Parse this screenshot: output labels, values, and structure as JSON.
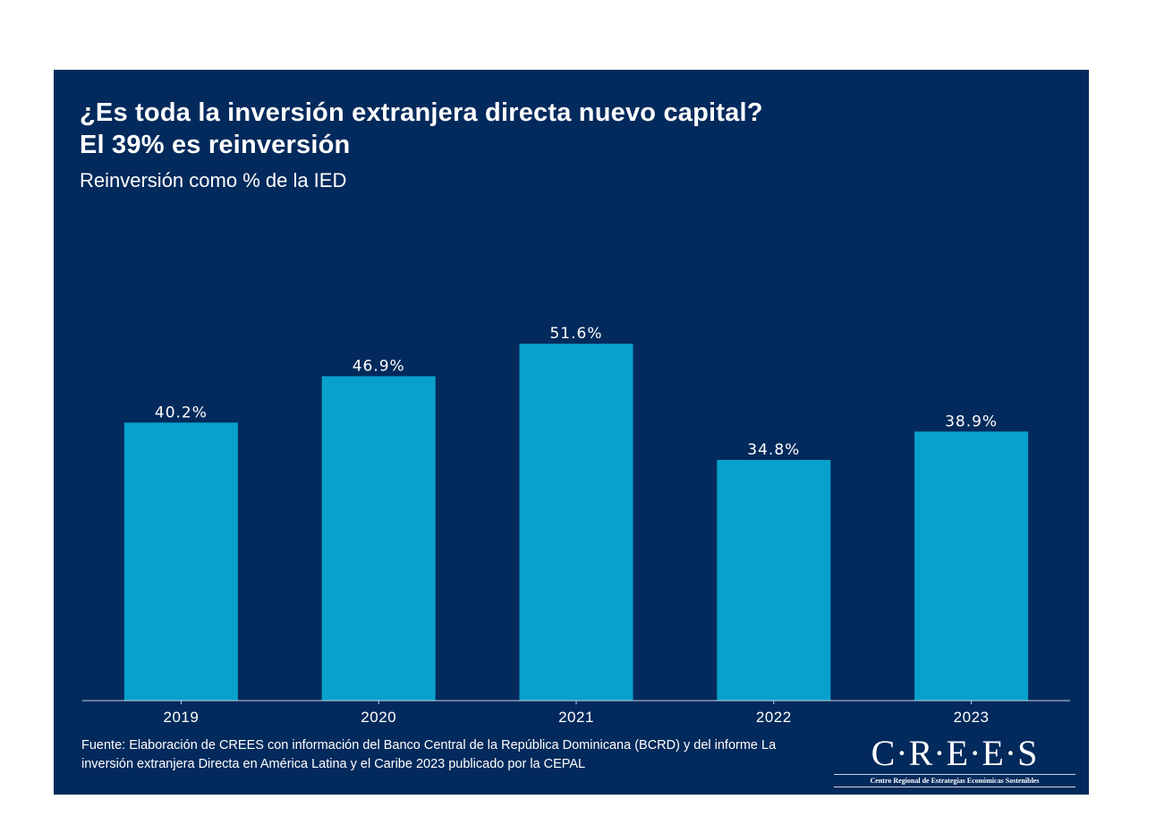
{
  "header": {
    "title_line1": "¿Es toda la inversión extranjera directa nuevo capital?",
    "title_line2": "El 39% es reinversión",
    "subtitle": "Reinversión como % de la IED"
  },
  "footer": {
    "source": "Fuente: Elaboración de CREES con información del Banco Central de la República Dominicana (BCRD) y del informe La inversión extranjera Directa en América Latina y el Caribe 2023 publicado por la CEPAL"
  },
  "logo": {
    "name": "C·R·E·E·S",
    "tagline": "Centro Regional de Estrategias Económicas Sostenibles"
  },
  "colors": {
    "background": "#032a5c",
    "bar": "#07a1cc",
    "text": "#ffffff",
    "axis": "#c9d3e3"
  },
  "chart_data": {
    "type": "bar",
    "title": "¿Es toda la inversión extranjera directa nuevo capital? El 39% es reinversión",
    "subtitle": "Reinversión como % de la IED",
    "xlabel": "",
    "ylabel": "",
    "categories": [
      "2019",
      "2020",
      "2021",
      "2022",
      "2023"
    ],
    "values": [
      40.2,
      46.9,
      51.6,
      34.8,
      38.9
    ],
    "data_labels": [
      "40.2%",
      "46.9%",
      "51.6%",
      "34.8%",
      "38.9%"
    ],
    "ylim": [
      0,
      60
    ],
    "grid": false,
    "legend": "none"
  }
}
